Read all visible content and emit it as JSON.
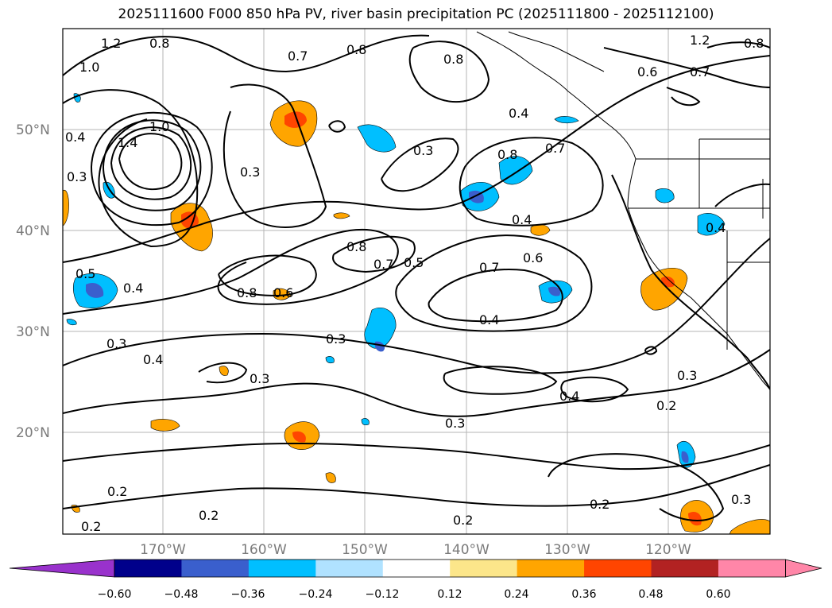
{
  "title": "2025111600 F000 850 hPa PV, river basin precipitation PC (2025111800 - 2025112100)",
  "map": {
    "lat_labels": [
      "50°N",
      "40°N",
      "30°N",
      "20°N"
    ],
    "lon_labels": [
      "170°W",
      "160°W",
      "150°W",
      "140°W",
      "130°W",
      "120°W"
    ],
    "contour_labels": [
      {
        "id": "c1",
        "text": "1.2"
      },
      {
        "id": "c2",
        "text": "1.0"
      },
      {
        "id": "c3",
        "text": "0.8"
      },
      {
        "id": "c4",
        "text": "0.7"
      },
      {
        "id": "c5",
        "text": "0.8"
      },
      {
        "id": "c6",
        "text": "0.8"
      },
      {
        "id": "c7",
        "text": "0.4"
      },
      {
        "id": "c8",
        "text": "0.3"
      },
      {
        "id": "c9",
        "text": "1.4"
      },
      {
        "id": "c10",
        "text": "1.0"
      },
      {
        "id": "c11",
        "text": "0.3"
      },
      {
        "id": "c12",
        "text": "0.3"
      },
      {
        "id": "c13",
        "text": "0.4"
      },
      {
        "id": "c14",
        "text": "0.8"
      },
      {
        "id": "c15",
        "text": "0.7"
      },
      {
        "id": "c16",
        "text": "0.4"
      },
      {
        "id": "c17",
        "text": "0.8"
      },
      {
        "id": "c18",
        "text": "0.7"
      },
      {
        "id": "c19",
        "text": "0.5"
      },
      {
        "id": "c20",
        "text": "0.6"
      },
      {
        "id": "c21",
        "text": "0.7"
      },
      {
        "id": "c22",
        "text": "0.4"
      },
      {
        "id": "c23",
        "text": "0.5"
      },
      {
        "id": "c24",
        "text": "0.4"
      },
      {
        "id": "c25",
        "text": "0.8"
      },
      {
        "id": "c26",
        "text": "0.6"
      },
      {
        "id": "c27",
        "text": "0.3"
      },
      {
        "id": "c28",
        "text": "0.4"
      },
      {
        "id": "c29",
        "text": "0.3"
      },
      {
        "id": "c30",
        "text": "0.3"
      },
      {
        "id": "c31",
        "text": "0.4"
      },
      {
        "id": "c32",
        "text": "0.3"
      },
      {
        "id": "c33",
        "text": "0.2"
      },
      {
        "id": "c34",
        "text": "0.3"
      },
      {
        "id": "c35",
        "text": "0.2"
      },
      {
        "id": "c36",
        "text": "0.2"
      },
      {
        "id": "c37",
        "text": "0.2"
      },
      {
        "id": "c38",
        "text": "0.2"
      },
      {
        "id": "c39",
        "text": "0.2"
      },
      {
        "id": "c40",
        "text": "0.3"
      },
      {
        "id": "c41",
        "text": "1.2"
      },
      {
        "id": "c42",
        "text": "0.8"
      },
      {
        "id": "c43",
        "text": "0.6"
      },
      {
        "id": "c44",
        "text": "0.7"
      },
      {
        "id": "c45",
        "text": "0.4"
      }
    ]
  },
  "colorbar": {
    "ticks": [
      "−0.60",
      "−0.48",
      "−0.36",
      "−0.24",
      "−0.12",
      "0.12",
      "0.24",
      "0.36",
      "0.48",
      "0.60"
    ],
    "colors": [
      "#9932cc",
      "#00008b",
      "#3a5fcd",
      "#00bfff",
      "#b0e2ff",
      "#ffffff",
      "#fce68a",
      "#ffa500",
      "#ff4500",
      "#b22222",
      "#ff86a8",
      "#ff86a8"
    ]
  }
}
